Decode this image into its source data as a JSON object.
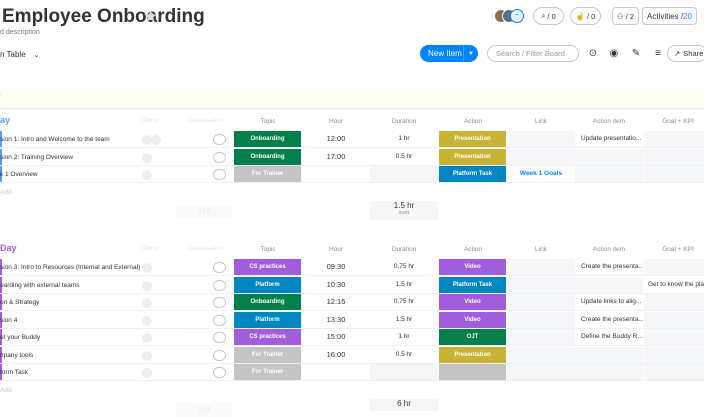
{
  "header": {
    "title": "Employee Onboarding",
    "description": "d description",
    "table_view": "n Table",
    "search_count": "/ 0",
    "updates_count": "/ 0",
    "members_count": "/ 2",
    "activities_label": "Activities /",
    "activities_count": "20"
  },
  "toolbar": {
    "new_item": "New Item",
    "search_placeholder": "Search / Filter Board",
    "share": "Share"
  },
  "columns": [
    "Topic",
    "Hour",
    "Duration",
    "Action",
    "Link",
    "Action item",
    "Goal + KPI"
  ],
  "columns_faint": [
    "Owner",
    "Conversation"
  ],
  "groups": [
    {
      "title": "ay",
      "color": "#579bfc",
      "rows": [
        {
          "name": "sion 1: Intro and Welcome to the team",
          "topic": "Onboarding",
          "topic_color": "#037f4c",
          "hour": "12:00",
          "duration": "1 hr",
          "action": "Presentation",
          "action_color": "#c9b335",
          "link": "",
          "action_item": "Update presentatio...",
          "goal": ""
        },
        {
          "name": "sion 2: Training Overview",
          "topic": "Onboarding",
          "topic_color": "#037f4c",
          "hour": "17:00",
          "duration": "0.5 hr",
          "action": "Presentation",
          "action_color": "#c9b335",
          "link": "",
          "action_item": "",
          "goal": ""
        },
        {
          "name": "k 1 Overview",
          "topic": "For Trainer",
          "topic_color": "#c4c4c4",
          "hour": "",
          "duration": "",
          "action": "Platform Task",
          "action_color": "#0086c0",
          "link": "Week 1 Goals",
          "action_item": "",
          "goal": ""
        }
      ],
      "add_label": "Add",
      "sum_value": "1.5 hr",
      "sum_label": "sum",
      "ghost_sum": "1 / 3"
    },
    {
      "title": "Day",
      "color": "#a25ddc",
      "rows": [
        {
          "name": "sion 3: Intro to Resources (Internal and External)",
          "topic": "CS practices",
          "topic_color": "#a25ddc",
          "hour": "09:30",
          "duration": "0.75 hr",
          "action": "Video",
          "action_color": "#a25ddc",
          "link": "",
          "action_item": "Create the presenta...",
          "goal": ""
        },
        {
          "name": "oarding with external teams",
          "topic": "Platform",
          "topic_color": "#0086c0",
          "hour": "10:30",
          "duration": "1.5 hr",
          "action": "Platform Task",
          "action_color": "#0086c0",
          "link": "",
          "action_item": "",
          "goal": "Get to know the pla..."
        },
        {
          "name": "on & Strategy",
          "topic": "Onboarding",
          "topic_color": "#037f4c",
          "hour": "12:15",
          "duration": "0.75 hr",
          "action": "Video",
          "action_color": "#a25ddc",
          "link": "",
          "action_item": "Update links to alig...",
          "goal": ""
        },
        {
          "name": "sion 4",
          "topic": "Platform",
          "topic_color": "#0086c0",
          "hour": "13:30",
          "duration": "1.5 hr",
          "action": "Video",
          "action_color": "#a25ddc",
          "link": "",
          "action_item": "Create the presenta...",
          "goal": ""
        },
        {
          "name": "et your Buddy",
          "topic": "CS practices",
          "topic_color": "#a25ddc",
          "hour": "15:00",
          "duration": "1 hr",
          "action": "OJT",
          "action_color": "#037f4c",
          "link": "",
          "action_item": "Define the Buddy R...",
          "goal": ""
        },
        {
          "name": "npany tools",
          "topic": "For Trainer",
          "topic_color": "#c4c4c4",
          "hour": "16:00",
          "duration": "0.5 hr",
          "action": "Presentation",
          "action_color": "#c9b335",
          "link": "",
          "action_item": "",
          "goal": ""
        },
        {
          "name": "form Task",
          "topic": "For Trainer",
          "topic_color": "#c4c4c4",
          "hour": "",
          "duration": "",
          "action": "",
          "action_color": "#c4c4c4",
          "link": "",
          "action_item": "",
          "goal": ""
        }
      ],
      "add_label": "Add",
      "sum_value": "6 hr",
      "sum_label": "",
      "ghost_sum": "1 / 4"
    }
  ]
}
